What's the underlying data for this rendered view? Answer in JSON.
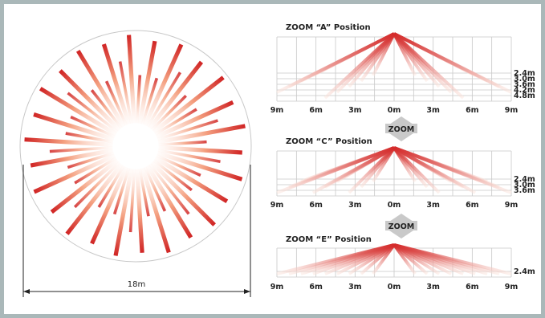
{
  "colors": {
    "frame": "#aab8b9",
    "beam_red": "#d42a2a",
    "beam_light": "#fbe3da",
    "grid": "#c8c8c8",
    "arrow": "#c9c9c9"
  },
  "circle_view": {
    "beam_count": 26,
    "dimension_label": "18m"
  },
  "panels": [
    {
      "title": "ZOOM “A” Position",
      "x_ticks": [
        "9m",
        "6m",
        "3m",
        "0m",
        "3m",
        "6m",
        "9m"
      ],
      "ranges": [
        "2.4m",
        "3.0m",
        "3.6m",
        "4.2m",
        "4.8m"
      ]
    },
    {
      "title": "ZOOM “C” Position",
      "x_ticks": [
        "9m",
        "6m",
        "3m",
        "0m",
        "3m",
        "6m",
        "9m"
      ],
      "ranges": [
        "2.4m",
        "3.0m",
        "3.6m"
      ]
    },
    {
      "title": "ZOOM “E” Position",
      "x_ticks": [
        "9m",
        "6m",
        "3m",
        "0m",
        "3m",
        "6m",
        "9m"
      ],
      "ranges": [
        "2.4m"
      ]
    }
  ],
  "zoom_arrows": [
    {
      "label": "ZOOM"
    },
    {
      "label": "ZOOM"
    }
  ]
}
